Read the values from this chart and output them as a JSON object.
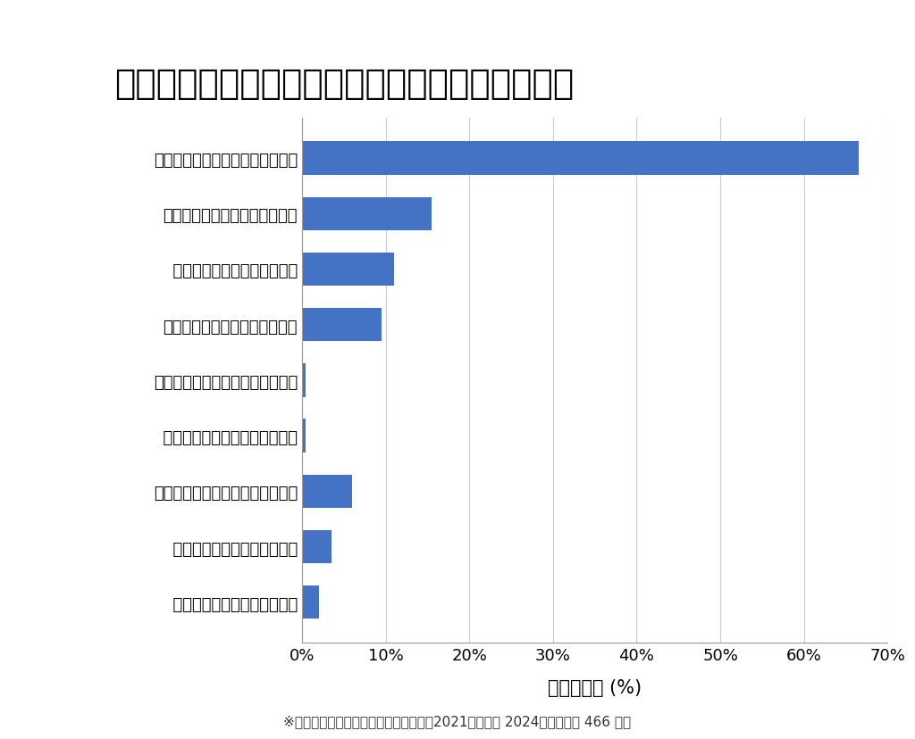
{
  "title": "江東区の車の種類別カーバッテリー上がりの原因",
  "categories": [
    "【国産車】ライト等つけっぱなし",
    "【国産車】車を動かしていない",
    "【国産車】バッテリーが古い",
    "【バイク】車を動かしていない",
    "【輸入車】ライト等つけっぱなし",
    "【輸入車】車を動かしていない",
    "【バイク】ライト等つけっぱなし",
    "【バイク】バッテリーが古い",
    "【輸入車】バッテリーが古い"
  ],
  "indented": [
    false,
    false,
    true,
    false,
    false,
    true,
    false,
    true,
    true
  ],
  "values": [
    66.5,
    15.5,
    11.0,
    9.5,
    0.4,
    0.4,
    6.0,
    3.5,
    2.0
  ],
  "bar_color": "#4472C4",
  "xlabel": "件数の割合 (%)",
  "xlim": [
    0,
    70
  ],
  "xticks": [
    0,
    10,
    20,
    30,
    40,
    50,
    60,
    70
  ],
  "xtick_labels": [
    "0%",
    "10%",
    "20%",
    "30%",
    "40%",
    "50%",
    "60%",
    "70%"
  ],
  "footnote": "※弊社受付の案件を対象に集計（期間：2021年１月～ 2024年８月、計 466 件）",
  "background_color": "#ffffff",
  "title_fontsize": 28,
  "label_fontsize": 13,
  "tick_fontsize": 13,
  "xlabel_fontsize": 15,
  "footnote_fontsize": 11
}
